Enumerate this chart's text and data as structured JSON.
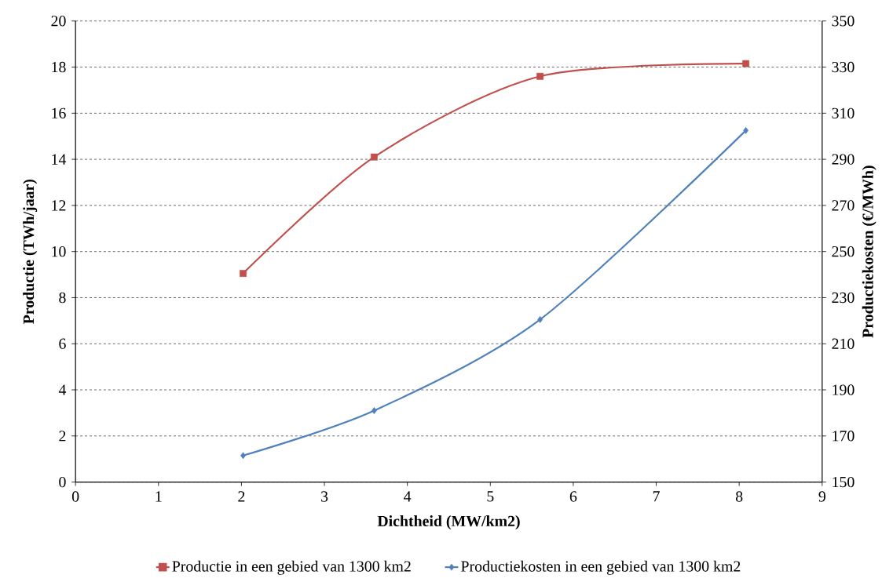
{
  "chart_data": {
    "type": "line",
    "xlabel": "Dichtheid (MW/km2)",
    "ylabel": "Productie (TWh/jaar)",
    "y2label": "Productiekosten (€/MWh)",
    "x": [
      2.02,
      3.6,
      5.6,
      8.08
    ],
    "series": [
      {
        "name": "Productie in een gebied van 1300 km2",
        "color": "#c0504d",
        "marker": "square",
        "values": [
          9.05,
          14.1,
          17.6,
          18.15
        ]
      },
      {
        "name": "Productiekosten in een gebied van 1300 km2",
        "color": "#4f81bd",
        "marker": "diamond",
        "axis": "y2",
        "values": [
          161.5,
          181,
          220.5,
          302.5
        ]
      }
    ],
    "xlim": [
      0,
      9
    ],
    "xticks": [
      0,
      1,
      2,
      3,
      4,
      5,
      6,
      7,
      8,
      9
    ],
    "ylim": [
      0,
      20
    ],
    "yticks": [
      0,
      2,
      4,
      6,
      8,
      10,
      12,
      14,
      16,
      18,
      20
    ],
    "y2lim": [
      150,
      350
    ],
    "y2ticks": [
      150,
      170,
      190,
      210,
      230,
      250,
      270,
      290,
      310,
      330,
      350
    ],
    "grid": "y",
    "legend": "bottom"
  }
}
